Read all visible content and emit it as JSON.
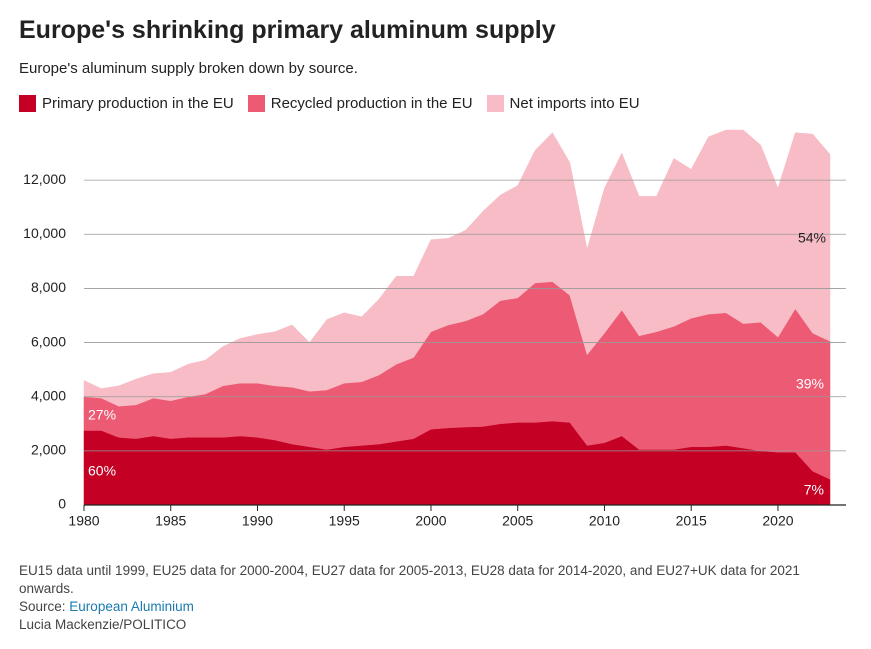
{
  "chart_data": {
    "type": "stacked_area",
    "title": "Europe's shrinking primary aluminum supply",
    "subtitle": "Europe's aluminum supply broken down by source.",
    "x": [
      1980,
      1981,
      1982,
      1983,
      1984,
      1985,
      1986,
      1987,
      1988,
      1989,
      1990,
      1991,
      1992,
      1993,
      1994,
      1995,
      1996,
      1997,
      1998,
      1999,
      2000,
      2001,
      2002,
      2003,
      2004,
      2005,
      2006,
      2007,
      2008,
      2009,
      2010,
      2011,
      2012,
      2013,
      2014,
      2015,
      2016,
      2017,
      2018,
      2019,
      2020,
      2021,
      2022,
      2023
    ],
    "series": [
      {
        "name": "Primary production in the EU",
        "color": "#c40025",
        "values": [
          2750,
          2750,
          2500,
          2450,
          2550,
          2450,
          2500,
          2500,
          2500,
          2550,
          2500,
          2400,
          2250,
          2150,
          2050,
          2150,
          2200,
          2250,
          2350,
          2450,
          2800,
          2850,
          2880,
          2900,
          3000,
          3050,
          3050,
          3100,
          3050,
          2200,
          2300,
          2550,
          2050,
          2050,
          2050,
          2150,
          2150,
          2200,
          2100,
          2000,
          1950,
          1950,
          1250,
          950
        ]
      },
      {
        "name": "Recycled production in the EU",
        "color": "#ec5a73",
        "values": [
          1250,
          1200,
          1150,
          1250,
          1400,
          1400,
          1500,
          1600,
          1900,
          1950,
          2000,
          2000,
          2100,
          2050,
          2200,
          2350,
          2350,
          2550,
          2850,
          3000,
          3600,
          3800,
          3920,
          4150,
          4550,
          4600,
          5150,
          5150,
          4700,
          3350,
          4050,
          4650,
          4200,
          4350,
          4550,
          4750,
          4900,
          4900,
          4600,
          4750,
          4250,
          5300,
          5100,
          5100
        ]
      },
      {
        "name": "Net imports into EU",
        "color": "#f7bcc5",
        "values": [
          600,
          350,
          750,
          950,
          900,
          1050,
          1200,
          1250,
          1450,
          1650,
          1800,
          2000,
          2300,
          1800,
          2600,
          2600,
          2400,
          2800,
          3250,
          3000,
          3400,
          3200,
          3350,
          3800,
          3900,
          4150,
          4900,
          5500,
          4900,
          3900,
          5350,
          5800,
          5150,
          5000,
          6200,
          5500,
          6550,
          6750,
          7150,
          6550,
          5500,
          6500,
          7350,
          6900
        ]
      }
    ],
    "xlim": [
      1980,
      2023
    ],
    "xticks": [
      1980,
      1985,
      1990,
      1995,
      2000,
      2005,
      2010,
      2015,
      2020
    ],
    "ylim": [
      0,
      14000
    ],
    "yticks": [
      0,
      {
        "value": 2000,
        "label": "2,000"
      },
      {
        "value": 4000,
        "label": "4,000"
      },
      {
        "value": 6000,
        "label": "6,000"
      },
      {
        "value": 8000,
        "label": "8,000"
      },
      {
        "value": 10000,
        "label": "10,000"
      },
      {
        "value": 12000,
        "label": "12,000"
      }
    ],
    "grid": true,
    "annotations": [
      "60%",
      "27%",
      "7%",
      "39%",
      "54%"
    ],
    "note": "EU15 data until 1999, EU25 data for 2000-2004, EU27 data for 2005-2013, EU28 data for 2014-2020, and EU27+UK data for 2021 onwards.",
    "source_label": "Source:",
    "source": "European Aluminium",
    "credit": "Lucia Mackenzie/POLITICO"
  }
}
